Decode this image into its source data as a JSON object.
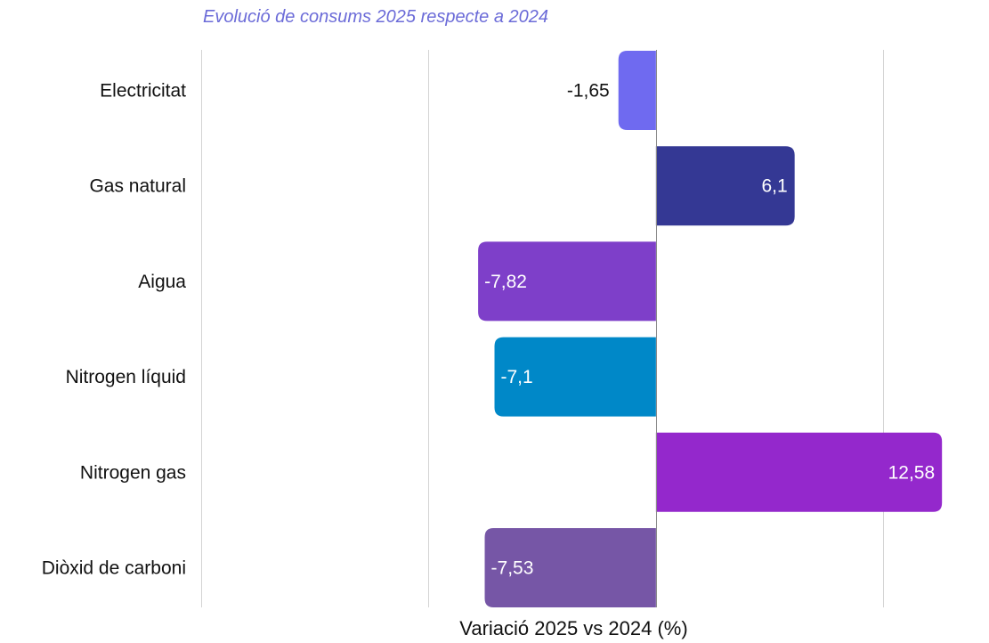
{
  "chart_data": {
    "type": "bar",
    "orientation": "horizontal",
    "title": "Evolució de consums 2025 respecte a 2024",
    "xlabel": "Variació 2025 vs 2024 (%)",
    "ylabel": "",
    "xlim": [
      -20,
      15
    ],
    "grid": true,
    "categories": [
      "Electricitat",
      "Gas natural",
      "Aigua",
      "Nitrogen líquid",
      "Nitrogen gas",
      "Diòxid de carboni"
    ],
    "values": [
      -1.65,
      6.1,
      -7.82,
      -7.1,
      12.58,
      -7.53
    ],
    "value_labels": [
      "-1,65",
      "6,1",
      "-7,82",
      "-7,1",
      "12,58",
      "-7,53"
    ],
    "colors": [
      "#6f6af0",
      "#343894",
      "#7e3fc9",
      "#0088c8",
      "#9428cc",
      "#7656a6"
    ],
    "label_colors": [
      "#111111",
      "#ffffff",
      "#ffffff",
      "#ffffff",
      "#ffffff",
      "#ffffff"
    ],
    "title_color": "#6b6bd8"
  }
}
